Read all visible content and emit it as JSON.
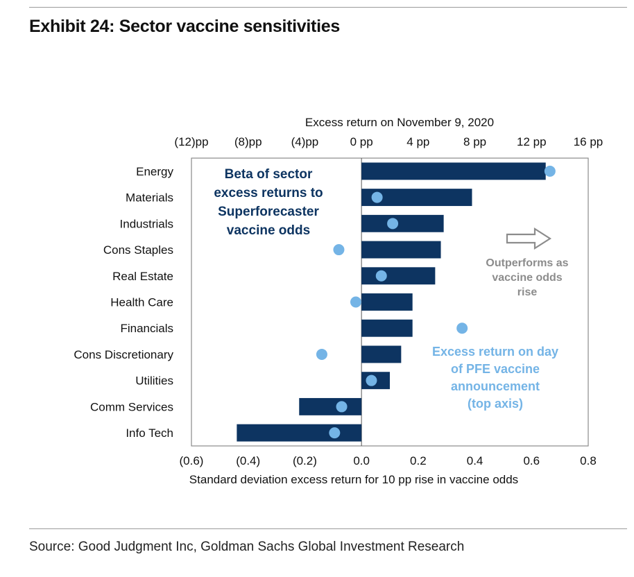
{
  "title": "Exhibit 24: Sector vaccine sensitivities",
  "source": "Source: Good Judgment Inc, Goldman Sachs Global Investment Research",
  "colors": {
    "bar": "#0d3461",
    "dot": "#74b4e6",
    "arrow_gray": "#8c8c8c"
  },
  "chart_data": {
    "type": "bar",
    "orientation": "horizontal",
    "categories": [
      "Energy",
      "Materials",
      "Industrials",
      "Cons Staples",
      "Real Estate",
      "Health Care",
      "Financials",
      "Cons Discretionary",
      "Utilities",
      "Comm Services",
      "Info Tech"
    ],
    "series": [
      {
        "name": "Beta of sector excess returns to Superforecaster vaccine odds",
        "axis": "bottom",
        "type": "bar",
        "values": [
          0.65,
          0.39,
          0.29,
          0.28,
          0.26,
          0.18,
          0.18,
          0.14,
          0.1,
          -0.22,
          -0.44
        ]
      },
      {
        "name": "Excess return on day of PFE vaccine announcement (top axis)",
        "axis": "top",
        "type": "scatter",
        "values": [
          13.3,
          1.1,
          2.2,
          -1.6,
          1.4,
          -0.4,
          7.1,
          -2.8,
          0.7,
          -1.4,
          -1.9
        ]
      }
    ],
    "bottom_axis": {
      "label": "Standard deviation excess return for 10 pp rise in vaccine odds",
      "range": [
        -0.6,
        0.8
      ],
      "ticks": [
        -0.6,
        -0.4,
        -0.2,
        0.0,
        0.2,
        0.4,
        0.6,
        0.8
      ],
      "tick_labels": [
        "(0.6)",
        "(0.4)",
        "(0.2)",
        "0.0",
        "0.2",
        "0.4",
        "0.6",
        "0.8"
      ]
    },
    "top_axis": {
      "label": "Excess return on November 9, 2020",
      "range": [
        -12,
        16
      ],
      "ticks": [
        -12,
        -8,
        -4,
        0,
        4,
        8,
        12,
        16
      ],
      "tick_labels": [
        "(12)pp",
        "(8)pp",
        "(4)pp",
        "0 pp",
        "4 pp",
        "8 pp",
        "12 pp",
        "16 pp"
      ]
    },
    "annotations": [
      {
        "name": "beta-legend",
        "lines": [
          "Beta of sector",
          "excess returns to",
          "Superforecaster",
          "vaccine odds"
        ]
      },
      {
        "name": "outperform-note",
        "lines": [
          "Outperforms as",
          "vaccine odds",
          "rise"
        ]
      },
      {
        "name": "pfe-legend",
        "lines": [
          "Excess return on day",
          "of PFE vaccine",
          "announcement",
          "(top axis)"
        ]
      }
    ],
    "grid": false,
    "zero_line": true
  }
}
